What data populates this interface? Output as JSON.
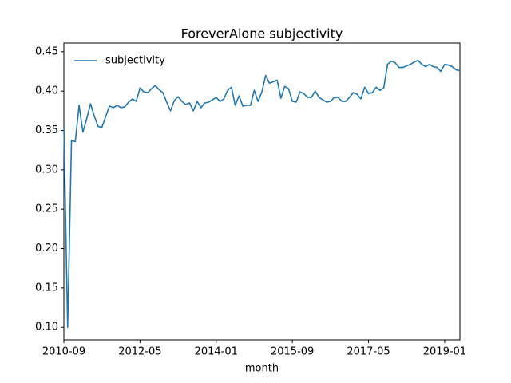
{
  "chart_data": {
    "type": "line",
    "title": "ForeverAlone subjectivity",
    "x_label": "month",
    "x": [
      "2010-09",
      "2010-10",
      "2010-11",
      "2010-12",
      "2011-01",
      "2011-02",
      "2011-03",
      "2011-04",
      "2011-05",
      "2011-06",
      "2011-07",
      "2011-08",
      "2011-09",
      "2011-10",
      "2011-11",
      "2011-12",
      "2012-01",
      "2012-02",
      "2012-03",
      "2012-04",
      "2012-05",
      "2012-06",
      "2012-07",
      "2012-08",
      "2012-09",
      "2012-10",
      "2012-11",
      "2012-12",
      "2013-01",
      "2013-02",
      "2013-03",
      "2013-04",
      "2013-05",
      "2013-06",
      "2013-07",
      "2013-08",
      "2013-09",
      "2013-10",
      "2013-11",
      "2013-12",
      "2014-01",
      "2014-02",
      "2014-03",
      "2014-04",
      "2014-05",
      "2014-06",
      "2014-07",
      "2014-08",
      "2014-09",
      "2014-10",
      "2014-11",
      "2014-12",
      "2015-01",
      "2015-02",
      "2015-03",
      "2015-04",
      "2015-05",
      "2015-06",
      "2015-07",
      "2015-08",
      "2015-09",
      "2015-10",
      "2015-11",
      "2015-12",
      "2016-01",
      "2016-02",
      "2016-03",
      "2016-04",
      "2016-05",
      "2016-06",
      "2016-07",
      "2016-08",
      "2016-09",
      "2016-10",
      "2016-11",
      "2016-12",
      "2017-01",
      "2017-02",
      "2017-03",
      "2017-04",
      "2017-05",
      "2017-06",
      "2017-07",
      "2017-08",
      "2017-09",
      "2017-10",
      "2017-11",
      "2017-12",
      "2018-01",
      "2018-02",
      "2018-03",
      "2018-04",
      "2018-05",
      "2018-06",
      "2018-07",
      "2018-08",
      "2018-09",
      "2018-10",
      "2018-11",
      "2018-12",
      "2019-01",
      "2019-02",
      "2019-03",
      "2019-04",
      "2019-05"
    ],
    "series": [
      {
        "name": "subjectivity",
        "color": "#1f77b4",
        "values": [
          0.355,
          0.1,
          0.337,
          0.336,
          0.382,
          0.348,
          0.365,
          0.384,
          0.368,
          0.355,
          0.354,
          0.368,
          0.381,
          0.379,
          0.382,
          0.379,
          0.38,
          0.386,
          0.39,
          0.387,
          0.404,
          0.399,
          0.398,
          0.403,
          0.407,
          0.402,
          0.398,
          0.386,
          0.375,
          0.388,
          0.393,
          0.387,
          0.383,
          0.385,
          0.375,
          0.387,
          0.379,
          0.385,
          0.386,
          0.389,
          0.392,
          0.387,
          0.39,
          0.401,
          0.405,
          0.382,
          0.394,
          0.381,
          0.382,
          0.382,
          0.401,
          0.387,
          0.399,
          0.42,
          0.41,
          0.412,
          0.414,
          0.391,
          0.406,
          0.403,
          0.387,
          0.386,
          0.399,
          0.397,
          0.392,
          0.392,
          0.4,
          0.392,
          0.389,
          0.386,
          0.387,
          0.392,
          0.392,
          0.387,
          0.387,
          0.392,
          0.398,
          0.396,
          0.39,
          0.405,
          0.397,
          0.398,
          0.405,
          0.401,
          0.404,
          0.434,
          0.438,
          0.436,
          0.43,
          0.43,
          0.432,
          0.434,
          0.437,
          0.439,
          0.434,
          0.431,
          0.434,
          0.431,
          0.43,
          0.425,
          0.434,
          0.433,
          0.431,
          0.427,
          0.426
        ]
      }
    ],
    "xlim": [
      "2010-09",
      "2019-05"
    ],
    "xticks": [
      "2010-09",
      "2012-05",
      "2014-01",
      "2015-09",
      "2017-05",
      "2019-01"
    ],
    "ylim": [
      0.084,
      0.461
    ],
    "yticks": [
      {
        "value": 0.1,
        "label": "0.10"
      },
      {
        "value": 0.15,
        "label": "0.15"
      },
      {
        "value": 0.2,
        "label": "0.20"
      },
      {
        "value": 0.25,
        "label": "0.25"
      },
      {
        "value": 0.3,
        "label": "0.30"
      },
      {
        "value": 0.35,
        "label": "0.35"
      },
      {
        "value": 0.4,
        "label": "0.40"
      },
      {
        "value": 0.45,
        "label": "0.45"
      }
    ],
    "grid": false,
    "legend": "upper left"
  }
}
